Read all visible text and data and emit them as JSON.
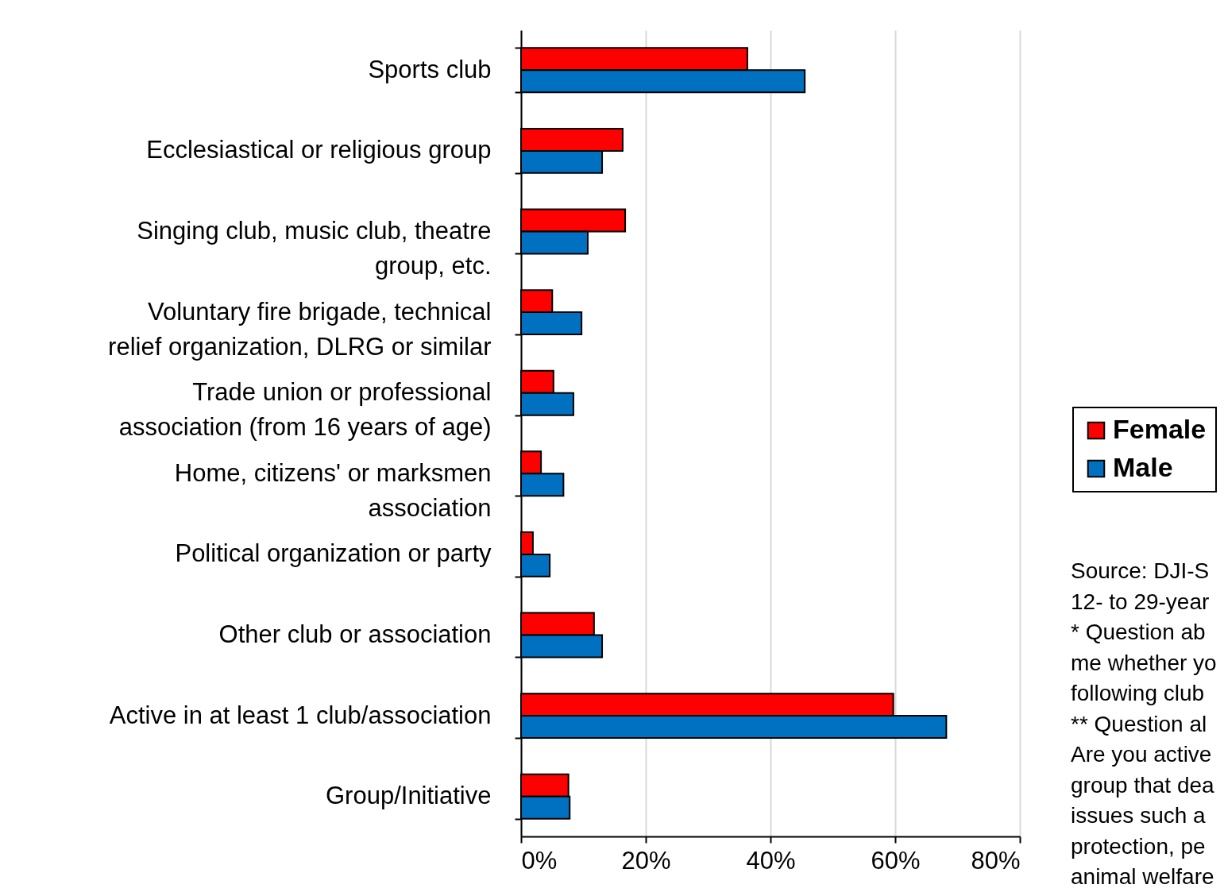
{
  "chart_data": {
    "type": "bar",
    "orientation": "horizontal",
    "categories": [
      "Sports club",
      "Ecclesiastical or religious group",
      "Singing club, music club, theatre group, etc.",
      "Voluntary fire brigade, technical relief organization, DLRG or similar",
      "Trade union or professional association (from 16 years of age)",
      "Home, citizens' or marksmen association",
      "Political organization or party",
      "Other club or association",
      "Active in at least 1 club/association",
      "Group/Initiative"
    ],
    "series": [
      {
        "name": "Female",
        "color": "#ff0000",
        "values": [
          36.3,
          16.3,
          16.7,
          5.0,
          5.2,
          3.2,
          1.9,
          11.7,
          59.7,
          7.6
        ]
      },
      {
        "name": "Male",
        "color": "#0070c0",
        "values": [
          45.5,
          13.0,
          10.7,
          9.7,
          8.4,
          6.8,
          4.6,
          13.0,
          68.2,
          7.8
        ]
      }
    ],
    "xlim": [
      0,
      80
    ],
    "xticks": [
      {
        "value": 0,
        "label": "0%"
      },
      {
        "value": 20,
        "label": "20%"
      },
      {
        "value": 40,
        "label": "40%"
      },
      {
        "value": 60,
        "label": "60%"
      },
      {
        "value": 80,
        "label": "80%"
      }
    ],
    "grid": "x",
    "legend": "right",
    "annotations": [
      "Source: DJI-S",
      "12- to 29-year",
      "* Question ab",
      "me whether yo",
      "following club",
      "** Question al",
      "Are you active",
      "group that dea",
      "issues such a",
      "protection, pe",
      "animal welfare"
    ]
  }
}
